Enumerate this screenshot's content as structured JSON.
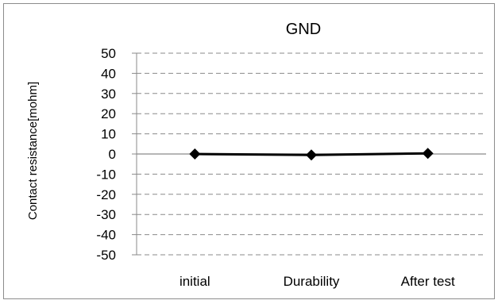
{
  "chart_data": {
    "type": "line",
    "title": "GND",
    "ylabel": "Contact resistance[mohm]",
    "xlabel": "",
    "categories": [
      "initial",
      "Durability",
      "After test"
    ],
    "series": [
      {
        "values": [
          0,
          -0.5,
          0.3
        ],
        "color": "#000000",
        "marker": "diamond"
      }
    ],
    "ylim": [
      -50,
      50
    ],
    "yticks": [
      50,
      40,
      30,
      20,
      10,
      0,
      -10,
      -20,
      -30,
      -40,
      -50
    ],
    "grid": "dashed-horizontal",
    "legend": "none"
  }
}
